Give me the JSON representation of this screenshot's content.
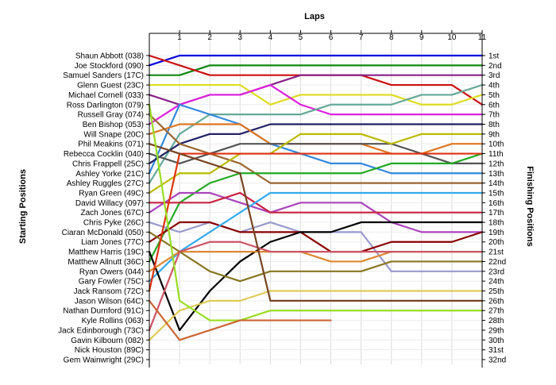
{
  "chart_data": {
    "type": "line",
    "title": "",
    "xlabel": "Laps",
    "ylabel_left": "Starting Positions",
    "ylabel_right": "Finishing Positions",
    "x_ticks": [
      1,
      2,
      3,
      4,
      5,
      6,
      7,
      8,
      9,
      10,
      11
    ],
    "xlim": [
      0,
      11
    ],
    "ylim": [
      1,
      32
    ],
    "y_inverted": true,
    "grid": true,
    "starting_labels": [
      "Shaun Abbott (038)",
      "Joe Stockford (090)",
      "Samuel Sanders (17C)",
      "Glenn Guest (23C)",
      "Michael Cornell (033)",
      "Ross Darlington (079)",
      "Russell Gray (074)",
      "Ben Bishop (053)",
      "Will Snape (20C)",
      "Phil Meakins (071)",
      "Rebecca Cocklin (040)",
      "Chris Frappell (25C)",
      "Ashley Yorke (21C)",
      "Ashley Ruggles (27C)",
      "Ryan Green (49C)",
      "David Willacy (097)",
      "Zach Jones (67C)",
      "Chris Pyke (26C)",
      "Ciaran McDonald (050)",
      "Liam Jones (77C)",
      "Matthew Harris (19C)",
      "Matthew Allnutt (36C)",
      "Ryan Owers (044)",
      "Gary Fowler (75C)",
      "Jack Ransom (72C)",
      "Jason Wilson (64C)",
      "Nathan Durnford (91C)",
      "Kyle Rollins (063)",
      "Jack Edinborough (73C)",
      "Gavin Kilbourn (082)",
      "Nick Houston (89C)",
      "Gem Wainwright (29C)"
    ],
    "finishing_labels": [
      "1st",
      "2nd",
      "3rd",
      "4th",
      "5th",
      "6th",
      "7th",
      "8th",
      "9th",
      "10th",
      "11th",
      "12th",
      "13th",
      "14th",
      "15th",
      "16th",
      "17th",
      "18th",
      "19th",
      "20th",
      "21st",
      "22nd",
      "23rd",
      "24th",
      "25th",
      "26th",
      "27th",
      "28th",
      "29th",
      "30th",
      "31st",
      "32nd"
    ],
    "series": [
      {
        "color": "#0000dd",
        "values": [
          2,
          1,
          1,
          1,
          1,
          1,
          1,
          1,
          1,
          1,
          1,
          1
        ]
      },
      {
        "color": "#118811",
        "values": [
          3,
          3,
          2,
          2,
          2,
          2,
          2,
          2,
          2,
          2,
          2,
          2
        ]
      },
      {
        "color": "#cc1111",
        "values": [
          1,
          2,
          3,
          3,
          3,
          3,
          3,
          3,
          4,
          4,
          4,
          6
        ]
      },
      {
        "color": "#882288",
        "values": [
          5,
          6,
          5,
          5,
          4,
          3,
          3,
          3,
          3,
          3,
          3,
          3
        ]
      },
      {
        "color": "#dddd22",
        "values": [
          4,
          4,
          4,
          4,
          6,
          5,
          5,
          5,
          5,
          6,
          6,
          5
        ]
      },
      {
        "color": "#dd22dd",
        "values": [
          8,
          6,
          5,
          5,
          4,
          6,
          7,
          7,
          7,
          7,
          7,
          7
        ]
      },
      {
        "color": "#66aa99",
        "values": [
          14,
          9,
          7,
          7,
          7,
          7,
          6,
          6,
          6,
          5,
          5,
          4
        ]
      },
      {
        "color": "#3388dd",
        "values": [
          13,
          6,
          7,
          8,
          10,
          11,
          12,
          12,
          13,
          13,
          13,
          13
        ]
      },
      {
        "color": "#222266",
        "values": [
          12,
          10,
          9,
          9,
          8,
          8,
          8,
          8,
          8,
          8,
          8,
          8
        ]
      },
      {
        "color": "#dd7722",
        "values": [
          9,
          8,
          8,
          8,
          10,
          10,
          10,
          10,
          11,
          11,
          10,
          10
        ]
      },
      {
        "color": "#996633",
        "values": [
          7,
          10,
          11,
          12,
          14,
          14,
          14,
          14,
          14,
          14,
          14,
          14
        ]
      },
      {
        "color": "#555555",
        "values": [
          11,
          12,
          11,
          10,
          10,
          10,
          10,
          10,
          10,
          11,
          12,
          12
        ]
      },
      {
        "color": "#bbbb00",
        "values": [
          15,
          13,
          13,
          11,
          11,
          9,
          9,
          9,
          10,
          9,
          9,
          9
        ]
      },
      {
        "color": "#22aa22",
        "values": [
          22,
          16,
          14,
          13,
          13,
          13,
          13,
          13,
          12,
          12,
          12,
          11
        ]
      },
      {
        "color": "#aa44bb",
        "values": [
          17,
          15,
          15,
          16,
          17,
          16,
          16,
          16,
          18,
          19,
          19,
          19
        ]
      },
      {
        "color": "#cc2244",
        "values": [
          16,
          16,
          16,
          15,
          17,
          17,
          17,
          17,
          17,
          17,
          17,
          17
        ]
      },
      {
        "color": "#9999cc",
        "values": [
          18,
          19,
          18,
          19,
          18,
          19,
          19,
          19,
          23,
          23,
          23,
          23
        ]
      },
      {
        "color": "#880000",
        "values": [
          20,
          18,
          18,
          19,
          19,
          19,
          21,
          21,
          20,
          20,
          20,
          19
        ]
      },
      {
        "color": "#33aaee",
        "values": [
          24,
          21,
          19,
          17,
          15,
          15,
          15,
          15,
          15,
          15,
          15,
          15
        ]
      },
      {
        "color": "#000000",
        "values": [
          21,
          29,
          25,
          22,
          20,
          19,
          19,
          18,
          18,
          18,
          18,
          18
        ]
      },
      {
        "color": "#dd8833",
        "values": [
          23,
          21,
          21,
          21,
          21,
          21,
          22,
          22,
          21,
          21,
          21,
          21
        ]
      },
      {
        "color": "#887722",
        "values": [
          19,
          21,
          23,
          24,
          23,
          23,
          23,
          23,
          22,
          22,
          22,
          22
        ]
      },
      {
        "color": "#cc5566",
        "values": [
          29,
          21,
          20,
          20,
          21,
          21,
          21,
          21,
          21,
          21,
          21,
          21
        ]
      },
      {
        "color": "#ddcc55",
        "values": [
          30,
          27,
          26,
          26,
          25,
          25,
          25,
          25,
          25,
          25,
          25,
          25
        ]
      },
      {
        "color": "#dd3311",
        "values": [
          25,
          11,
          11,
          11,
          11,
          11,
          11,
          11,
          11,
          11,
          11,
          11
        ]
      },
      {
        "color": "#774422",
        "values": [
          10,
          11,
          12,
          13,
          26,
          26,
          26,
          26,
          26,
          26,
          26,
          26
        ]
      },
      {
        "color": "#99dd22",
        "values": [
          6,
          26,
          28,
          28,
          27,
          27,
          27,
          27,
          27,
          27,
          27,
          27
        ]
      },
      {
        "color": "#cc6633",
        "values": [
          26,
          30,
          29,
          28,
          28,
          28,
          28
        ]
      }
    ]
  }
}
